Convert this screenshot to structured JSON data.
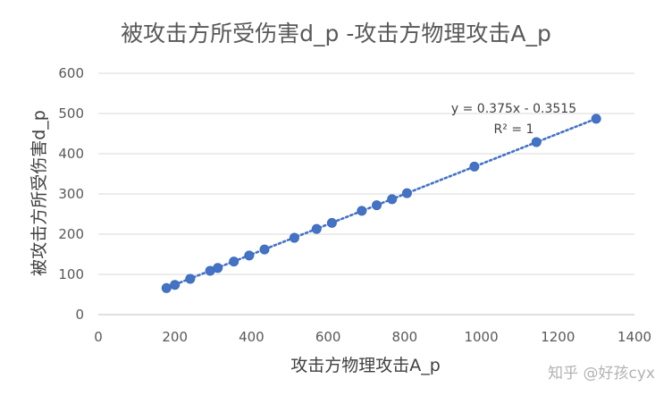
{
  "chart_data": {
    "type": "scatter",
    "title": "被攻击方所受伤害d_p -攻击方物理攻击A_p",
    "xlabel": "攻击方物理攻击A_p",
    "ylabel": "被攻击方所受伤害d_p",
    "xlim": [
      0,
      1400
    ],
    "ylim": [
      0,
      600
    ],
    "x_ticks": [
      0,
      200,
      400,
      600,
      800,
      1000,
      1200,
      1400
    ],
    "y_ticks": [
      0,
      100,
      200,
      300,
      400,
      500,
      600
    ],
    "grid": "horizontal",
    "legend": "none",
    "series": [
      {
        "color": "#4472c4",
        "points": [
          {
            "x": 178,
            "y": 66
          },
          {
            "x": 200,
            "y": 74
          },
          {
            "x": 240,
            "y": 89
          },
          {
            "x": 292,
            "y": 109
          },
          {
            "x": 312,
            "y": 116
          },
          {
            "x": 354,
            "y": 132
          },
          {
            "x": 394,
            "y": 147
          },
          {
            "x": 434,
            "y": 162
          },
          {
            "x": 512,
            "y": 191
          },
          {
            "x": 570,
            "y": 213
          },
          {
            "x": 610,
            "y": 228
          },
          {
            "x": 688,
            "y": 258
          },
          {
            "x": 727,
            "y": 272
          },
          {
            "x": 767,
            "y": 287
          },
          {
            "x": 806,
            "y": 302
          },
          {
            "x": 982,
            "y": 368
          },
          {
            "x": 1144,
            "y": 429
          },
          {
            "x": 1300,
            "y": 487
          }
        ]
      }
    ],
    "trendline": {
      "type": "linear",
      "slope": 0.375,
      "intercept": -0.3515,
      "x_range": [
        178,
        1300
      ],
      "equation_label": "y = 0.375x - 0.3515",
      "r2_label": "R² = 1"
    }
  },
  "watermark": "知乎 @好孩cyx"
}
